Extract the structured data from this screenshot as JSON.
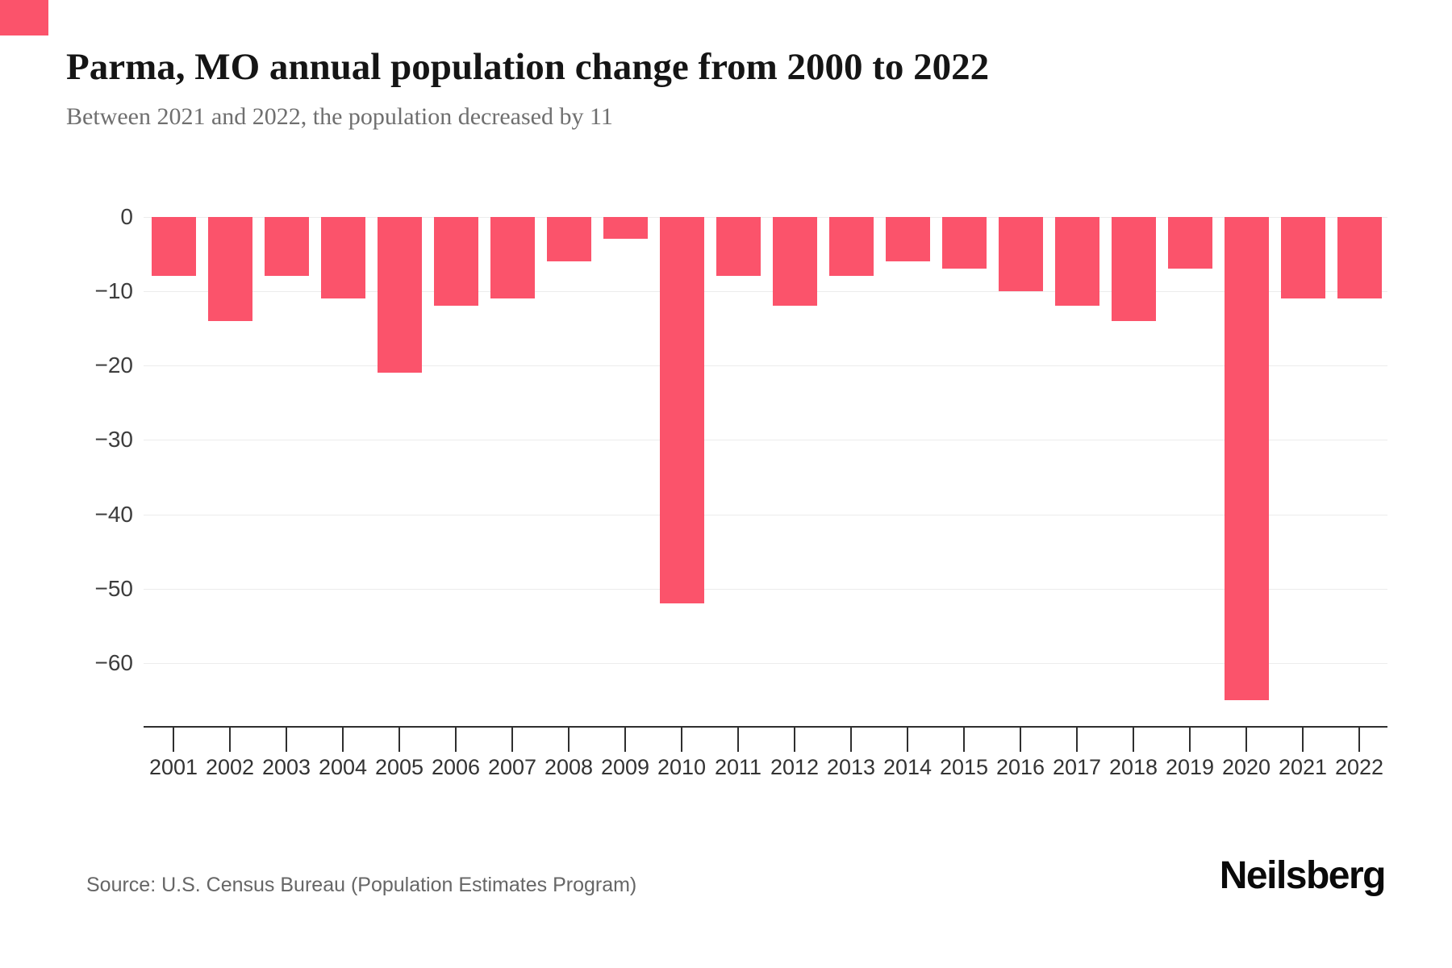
{
  "header": {
    "title": "Parma, MO annual population change from 2000 to 2022",
    "subtitle": "Between 2021 and 2022, the population decreased by 11"
  },
  "footer": {
    "source": "Source: U.S. Census Bureau (Population Estimates Program)",
    "brand": "Neilsberg"
  },
  "colors": {
    "bar": "#fb536b",
    "accent": "#fb536b",
    "grid": "#ececec",
    "axis": "#2f2f2f",
    "y_tick_label": "#3d3d3d",
    "x_tick_label": "#333333",
    "title": "#151515",
    "subtitle": "#6f6f6f",
    "source": "#666666"
  },
  "chart_data": {
    "type": "bar",
    "title": "Parma, MO annual population change from 2000 to 2022",
    "categories": [
      "2001",
      "2002",
      "2003",
      "2004",
      "2005",
      "2006",
      "2007",
      "2008",
      "2009",
      "2010",
      "2011",
      "2012",
      "2013",
      "2014",
      "2015",
      "2016",
      "2017",
      "2018",
      "2019",
      "2020",
      "2021",
      "2022"
    ],
    "values": [
      -8,
      -14,
      -8,
      -11,
      -21,
      -12,
      -11,
      -6,
      -3,
      -52,
      -8,
      -12,
      -8,
      -6,
      -7,
      -10,
      -12,
      -14,
      -7,
      -65,
      -11,
      -11
    ],
    "xlabel": "",
    "ylabel": "",
    "ylim": [
      -65,
      0
    ],
    "yticks": [
      0,
      -10,
      -20,
      -30,
      -40,
      -50,
      -60
    ],
    "grid": true,
    "legend": false,
    "bar_color": "#fb536b"
  }
}
